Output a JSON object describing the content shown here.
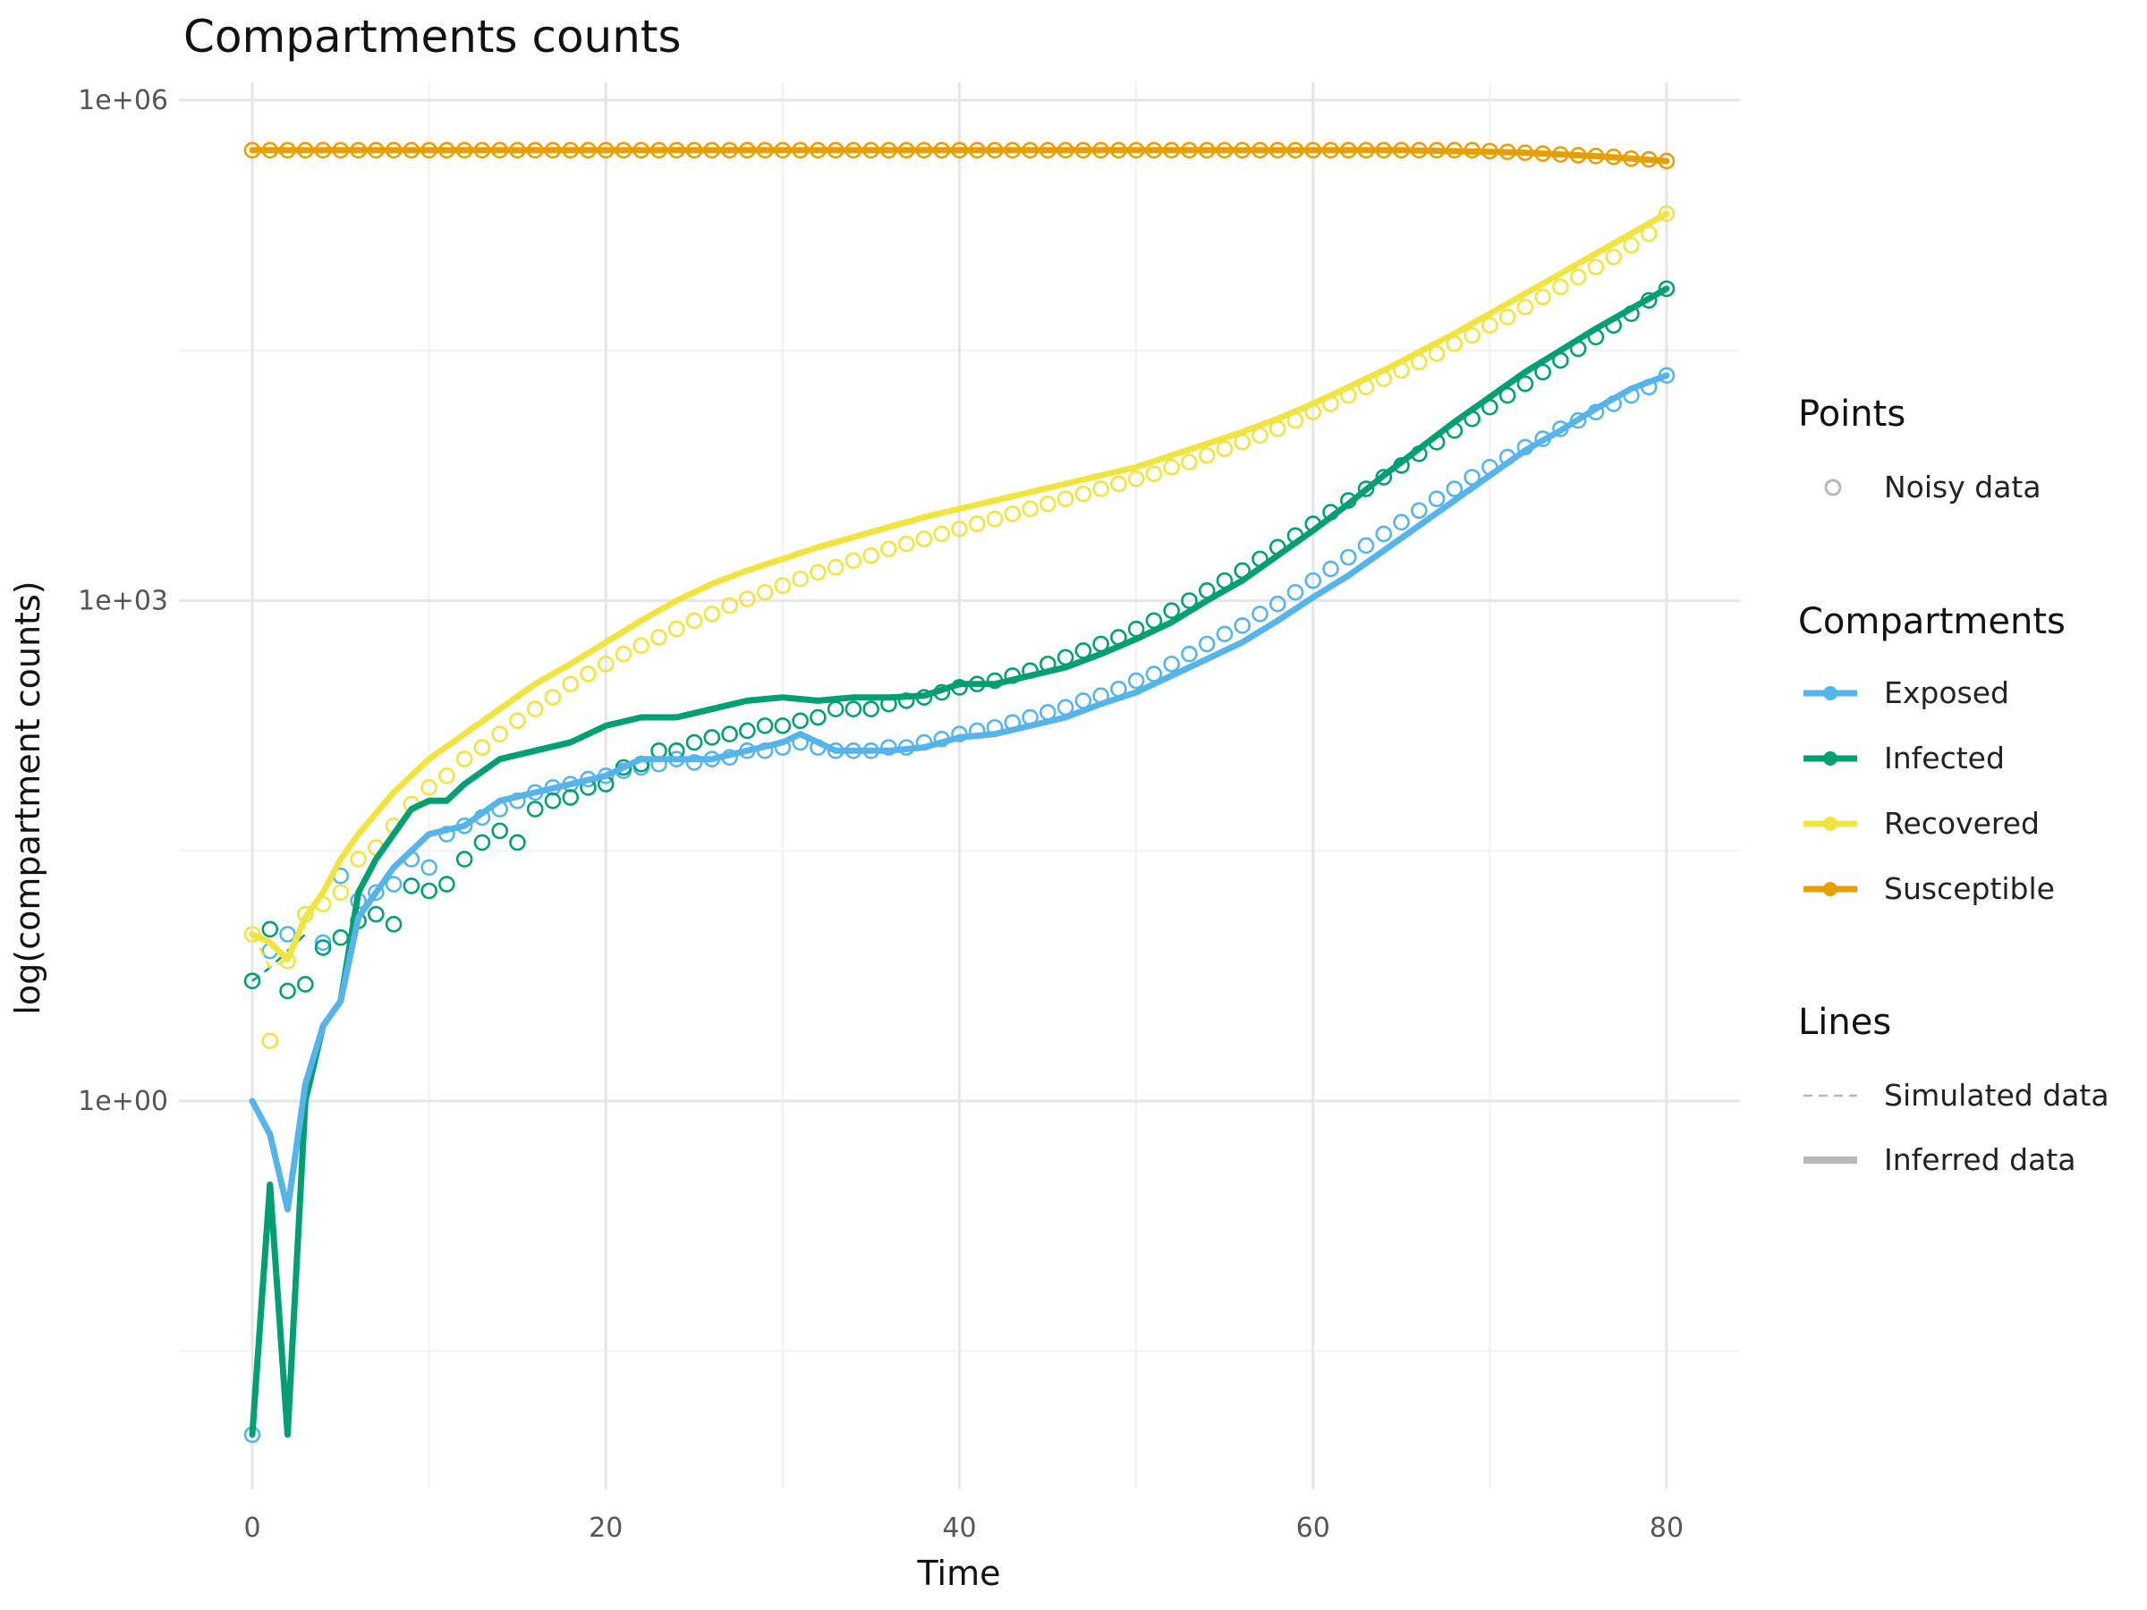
{
  "chart_data": {
    "type": "line",
    "title": "Compartments counts",
    "xlabel": "Time",
    "ylabel": "log(compartment counts)",
    "xlim": [
      -4,
      84
    ],
    "ylim_log10": [
      -2.3,
      6.25
    ],
    "x_ticks": [
      0,
      20,
      40,
      60,
      80
    ],
    "x_tick_labels": [
      "0",
      "20",
      "40",
      "60",
      "80"
    ],
    "y_ticks_log10": [
      0,
      3,
      6
    ],
    "y_tick_labels": [
      "1e+00",
      "1e+03",
      "1e+06"
    ],
    "grid": true,
    "legend": {
      "placement": "right",
      "points_title": "Points",
      "points_items": [
        {
          "label": "Noisy data"
        }
      ],
      "compartments_title": "Compartments",
      "compartments_items": [
        {
          "label": "Exposed",
          "color": "#56B4E9"
        },
        {
          "label": "Infected",
          "color": "#009E73"
        },
        {
          "label": "Recovered",
          "color": "#F0E442"
        },
        {
          "label": "Susceptible",
          "color": "#E69F00"
        }
      ],
      "lines_title": "Lines",
      "lines_items": [
        {
          "label": "Simulated data",
          "style": "dashed"
        },
        {
          "label": "Inferred data",
          "style": "solid"
        }
      ]
    },
    "series": [
      {
        "name": "Exposed",
        "color": "#56B4E9",
        "x_log10": [
          0,
          1,
          2,
          3,
          4,
          5,
          6,
          8,
          10,
          12,
          14,
          16,
          18,
          20,
          22,
          24,
          26,
          28,
          30,
          31,
          32,
          33,
          34,
          36,
          38,
          40,
          42,
          44,
          46,
          48,
          50,
          52,
          54,
          56,
          58,
          60,
          62,
          64,
          66,
          68,
          70,
          72,
          74,
          76,
          78,
          80
        ],
        "y_log10": [
          0,
          -0.2,
          -0.65,
          0.1,
          0.45,
          0.6,
          1.1,
          1.4,
          1.6,
          1.65,
          1.8,
          1.85,
          1.9,
          1.95,
          2.05,
          2.05,
          2.05,
          2.1,
          2.15,
          2.2,
          2.15,
          2.1,
          2.1,
          2.1,
          2.12,
          2.18,
          2.2,
          2.25,
          2.3,
          2.38,
          2.45,
          2.55,
          2.65,
          2.75,
          2.88,
          3.02,
          3.15,
          3.3,
          3.45,
          3.6,
          3.75,
          3.9,
          4.02,
          4.15,
          4.27,
          4.35
        ],
        "noisy_x": [
          0,
          1,
          2,
          3,
          4,
          5,
          6,
          7,
          8,
          9,
          10,
          11,
          12,
          13,
          14,
          15,
          16,
          17,
          18,
          19,
          20,
          21,
          22,
          23,
          24,
          25,
          26,
          27,
          28,
          29,
          30,
          31,
          32,
          33,
          34,
          35,
          36,
          37,
          38,
          39,
          40,
          41,
          42,
          43,
          44,
          45,
          46,
          47,
          48,
          49,
          50,
          51,
          52,
          53,
          54,
          55,
          56,
          57,
          58,
          59,
          60,
          61,
          62,
          63,
          64,
          65,
          66,
          67,
          68,
          69,
          70,
          71,
          72,
          73,
          74,
          75,
          76,
          77,
          78,
          79,
          80
        ],
        "noisy_y_log10": [
          -2,
          0.9,
          1.0,
          1.12,
          0.95,
          1.35,
          1.2,
          1.25,
          1.3,
          1.45,
          1.4,
          1.6,
          1.65,
          1.7,
          1.75,
          1.8,
          1.85,
          1.88,
          1.9,
          1.93,
          1.95,
          1.98,
          2.0,
          2.02,
          2.05,
          2.03,
          2.05,
          2.06,
          2.1,
          2.1,
          2.12,
          2.15,
          2.12,
          2.1,
          2.1,
          2.1,
          2.12,
          2.12,
          2.15,
          2.17,
          2.2,
          2.22,
          2.24,
          2.27,
          2.3,
          2.33,
          2.36,
          2.4,
          2.43,
          2.47,
          2.52,
          2.56,
          2.62,
          2.68,
          2.74,
          2.8,
          2.85,
          2.92,
          2.98,
          3.05,
          3.12,
          3.19,
          3.26,
          3.33,
          3.4,
          3.47,
          3.54,
          3.61,
          3.67,
          3.74,
          3.8,
          3.86,
          3.92,
          3.97,
          4.03,
          4.08,
          4.13,
          4.18,
          4.23,
          4.28,
          4.35
        ]
      },
      {
        "name": "Infected",
        "color": "#009E73",
        "x_log10": [
          0,
          1,
          2,
          3,
          4,
          5,
          6,
          7,
          8,
          9,
          10,
          11,
          12,
          14,
          16,
          18,
          20,
          22,
          24,
          26,
          28,
          30,
          32,
          34,
          36,
          38,
          40,
          42,
          44,
          46,
          48,
          50,
          52,
          54,
          56,
          58,
          60,
          62,
          64,
          66,
          68,
          70,
          72,
          74,
          76,
          78,
          80
        ],
        "y_log10": [
          -2,
          -0.5,
          -2,
          0,
          0.45,
          0.6,
          1.25,
          1.45,
          1.6,
          1.75,
          1.8,
          1.8,
          1.9,
          2.05,
          2.1,
          2.15,
          2.25,
          2.3,
          2.3,
          2.35,
          2.4,
          2.42,
          2.4,
          2.42,
          2.42,
          2.43,
          2.5,
          2.5,
          2.55,
          2.6,
          2.68,
          2.77,
          2.87,
          3.0,
          3.12,
          3.27,
          3.42,
          3.58,
          3.75,
          3.91,
          4.07,
          4.22,
          4.37,
          4.5,
          4.63,
          4.75,
          4.87
        ],
        "noisy_x": [
          0,
          1,
          2,
          3,
          4,
          5,
          6,
          7,
          8,
          9,
          10,
          11,
          12,
          13,
          14,
          15,
          16,
          17,
          18,
          19,
          20,
          21,
          22,
          23,
          24,
          25,
          26,
          27,
          28,
          29,
          30,
          31,
          32,
          33,
          34,
          35,
          36,
          37,
          38,
          39,
          40,
          41,
          42,
          43,
          44,
          45,
          46,
          47,
          48,
          49,
          50,
          51,
          52,
          53,
          54,
          55,
          56,
          57,
          58,
          59,
          60,
          61,
          62,
          63,
          64,
          65,
          66,
          67,
          68,
          69,
          70,
          71,
          72,
          73,
          74,
          75,
          76,
          77,
          78,
          79,
          80
        ],
        "noisy_y_log10": [
          0.72,
          1.03,
          0.66,
          0.7,
          0.92,
          0.98,
          1.08,
          1.12,
          1.06,
          1.29,
          1.26,
          1.3,
          1.45,
          1.55,
          1.62,
          1.55,
          1.75,
          1.8,
          1.82,
          1.88,
          1.9,
          2.0,
          2.02,
          2.1,
          2.1,
          2.15,
          2.18,
          2.2,
          2.22,
          2.25,
          2.25,
          2.28,
          2.3,
          2.35,
          2.35,
          2.35,
          2.38,
          2.4,
          2.42,
          2.45,
          2.48,
          2.5,
          2.52,
          2.55,
          2.58,
          2.62,
          2.66,
          2.7,
          2.74,
          2.78,
          2.83,
          2.88,
          2.94,
          3.0,
          3.06,
          3.12,
          3.18,
          3.25,
          3.32,
          3.39,
          3.46,
          3.53,
          3.6,
          3.67,
          3.74,
          3.81,
          3.88,
          3.95,
          4.02,
          4.09,
          4.16,
          4.23,
          4.3,
          4.37,
          4.44,
          4.51,
          4.58,
          4.65,
          4.72,
          4.8,
          4.87
        ]
      },
      {
        "name": "Recovered",
        "color": "#F0E442",
        "x_log10": [
          0,
          1,
          2,
          3,
          4,
          5,
          6,
          8,
          10,
          12,
          14,
          16,
          18,
          20,
          22,
          24,
          26,
          28,
          30,
          32,
          34,
          36,
          38,
          40,
          42,
          44,
          46,
          48,
          50,
          52,
          54,
          56,
          58,
          60,
          62,
          64,
          66,
          68,
          70,
          72,
          74,
          76,
          78,
          80
        ],
        "y_log10": [
          1.0,
          0.95,
          0.85,
          1.1,
          1.25,
          1.45,
          1.6,
          1.85,
          2.05,
          2.2,
          2.35,
          2.5,
          2.62,
          2.75,
          2.88,
          3.0,
          3.1,
          3.18,
          3.25,
          3.32,
          3.38,
          3.44,
          3.5,
          3.55,
          3.6,
          3.65,
          3.7,
          3.75,
          3.8,
          3.87,
          3.94,
          4.01,
          4.09,
          4.18,
          4.28,
          4.38,
          4.49,
          4.6,
          4.72,
          4.84,
          4.96,
          5.08,
          5.2,
          5.32
        ],
        "noisy_x": [
          0,
          1,
          2,
          3,
          4,
          5,
          6,
          7,
          8,
          9,
          10,
          11,
          12,
          13,
          14,
          15,
          16,
          17,
          18,
          19,
          20,
          21,
          22,
          23,
          24,
          25,
          26,
          27,
          28,
          29,
          30,
          31,
          32,
          33,
          34,
          35,
          36,
          37,
          38,
          39,
          40,
          41,
          42,
          43,
          44,
          45,
          46,
          47,
          48,
          49,
          50,
          51,
          52,
          53,
          54,
          55,
          56,
          57,
          58,
          59,
          60,
          61,
          62,
          63,
          64,
          65,
          66,
          67,
          68,
          69,
          70,
          71,
          72,
          73,
          74,
          75,
          76,
          77,
          78,
          79,
          80
        ],
        "noisy_y_log10": [
          1.0,
          0.36,
          0.84,
          1.12,
          1.18,
          1.25,
          1.45,
          1.52,
          1.65,
          1.78,
          1.88,
          1.95,
          2.05,
          2.12,
          2.2,
          2.28,
          2.35,
          2.42,
          2.5,
          2.56,
          2.62,
          2.68,
          2.73,
          2.78,
          2.83,
          2.88,
          2.92,
          2.97,
          3.01,
          3.05,
          3.09,
          3.13,
          3.17,
          3.2,
          3.24,
          3.27,
          3.31,
          3.34,
          3.37,
          3.4,
          3.43,
          3.46,
          3.49,
          3.52,
          3.55,
          3.58,
          3.61,
          3.64,
          3.67,
          3.7,
          3.73,
          3.76,
          3.8,
          3.83,
          3.87,
          3.91,
          3.95,
          3.99,
          4.03,
          4.08,
          4.13,
          4.18,
          4.23,
          4.28,
          4.33,
          4.38,
          4.43,
          4.48,
          4.54,
          4.59,
          4.65,
          4.7,
          4.76,
          4.82,
          4.88,
          4.94,
          5.0,
          5.06,
          5.13,
          5.2,
          5.32
        ]
      },
      {
        "name": "Susceptible",
        "color": "#E69F00",
        "x_log10": [
          0,
          10,
          20,
          30,
          40,
          50,
          60,
          65,
          70,
          72,
          74,
          76,
          78,
          80
        ],
        "y_log10": [
          5.7,
          5.7,
          5.7,
          5.7,
          5.7,
          5.7,
          5.7,
          5.7,
          5.69,
          5.685,
          5.675,
          5.665,
          5.65,
          5.635
        ],
        "noisy_x": [
          0,
          1,
          2,
          3,
          4,
          5,
          6,
          7,
          8,
          9,
          10,
          11,
          12,
          13,
          14,
          15,
          16,
          17,
          18,
          19,
          20,
          21,
          22,
          23,
          24,
          25,
          26,
          27,
          28,
          29,
          30,
          31,
          32,
          33,
          34,
          35,
          36,
          37,
          38,
          39,
          40,
          41,
          42,
          43,
          44,
          45,
          46,
          47,
          48,
          49,
          50,
          51,
          52,
          53,
          54,
          55,
          56,
          57,
          58,
          59,
          60,
          61,
          62,
          63,
          64,
          65,
          66,
          67,
          68,
          69,
          70,
          71,
          72,
          73,
          74,
          75,
          76,
          77,
          78,
          79,
          80
        ],
        "noisy_y_log10": [
          5.7,
          5.7,
          5.7,
          5.7,
          5.7,
          5.7,
          5.7,
          5.7,
          5.7,
          5.7,
          5.7,
          5.7,
          5.7,
          5.7,
          5.7,
          5.7,
          5.7,
          5.7,
          5.7,
          5.7,
          5.7,
          5.7,
          5.7,
          5.7,
          5.7,
          5.7,
          5.7,
          5.7,
          5.7,
          5.7,
          5.7,
          5.7,
          5.7,
          5.7,
          5.7,
          5.7,
          5.7,
          5.7,
          5.7,
          5.7,
          5.7,
          5.7,
          5.7,
          5.7,
          5.7,
          5.7,
          5.7,
          5.7,
          5.7,
          5.7,
          5.7,
          5.7,
          5.7,
          5.7,
          5.7,
          5.7,
          5.7,
          5.7,
          5.7,
          5.7,
          5.7,
          5.7,
          5.7,
          5.7,
          5.7,
          5.7,
          5.7,
          5.7,
          5.7,
          5.7,
          5.695,
          5.69,
          5.685,
          5.68,
          5.675,
          5.67,
          5.665,
          5.66,
          5.65,
          5.645,
          5.635
        ]
      }
    ],
    "simulated_dashed": [
      {
        "name": "Infected",
        "x": [
          0,
          1,
          2,
          3
        ],
        "y_log10": [
          0.72,
          0.8,
          0.9,
          1.0
        ]
      },
      {
        "name": "Recovered",
        "x": [
          0,
          1,
          2,
          3
        ],
        "y_log10": [
          1.0,
          0.8,
          0.85,
          1.05
        ]
      }
    ]
  }
}
